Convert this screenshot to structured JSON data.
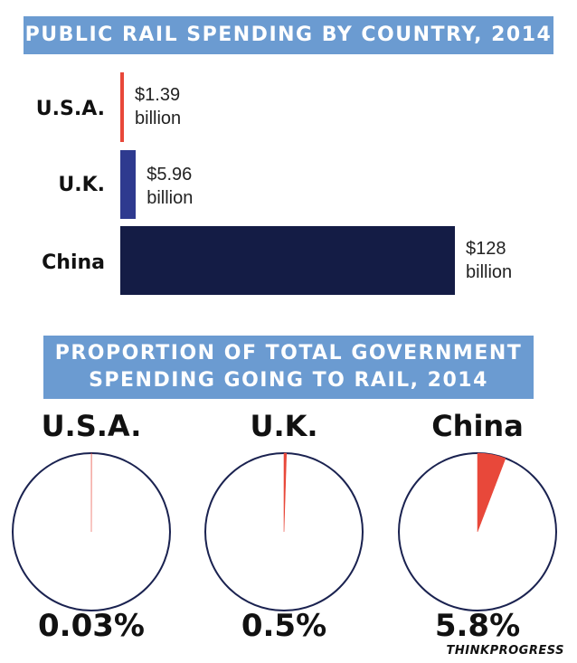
{
  "chart_data": [
    {
      "type": "bar",
      "title": "PUBLIC RAIL SPENDING BY COUNTRY, 2014",
      "orientation": "horizontal",
      "categories": [
        "U.S.A.",
        "U.K.",
        "China"
      ],
      "values": [
        1.39,
        5.96,
        128
      ],
      "units": "billion USD",
      "value_labels": [
        [
          "$1.39",
          "billion"
        ],
        [
          "$5.96",
          "billion"
        ],
        [
          "$128",
          "billion"
        ]
      ],
      "colors": [
        "#e8483a",
        "#2e3a8f",
        "#141c45"
      ]
    },
    {
      "type": "pie",
      "title": [
        "PROPORTION OF TOTAL GOVERNMENT",
        "SPENDING GOING TO RAIL, 2014"
      ],
      "pies": [
        {
          "name": "U.S.A.",
          "value": 0.03,
          "label": "0.03%"
        },
        {
          "name": "U.K.",
          "value": 0.5,
          "label": "0.5%"
        },
        {
          "name": "China",
          "value": 5.8,
          "label": "5.8%"
        }
      ],
      "slice_color": "#e8483a",
      "outline_color": "#1a2250"
    }
  ],
  "credit": "THINKPROGRESS"
}
